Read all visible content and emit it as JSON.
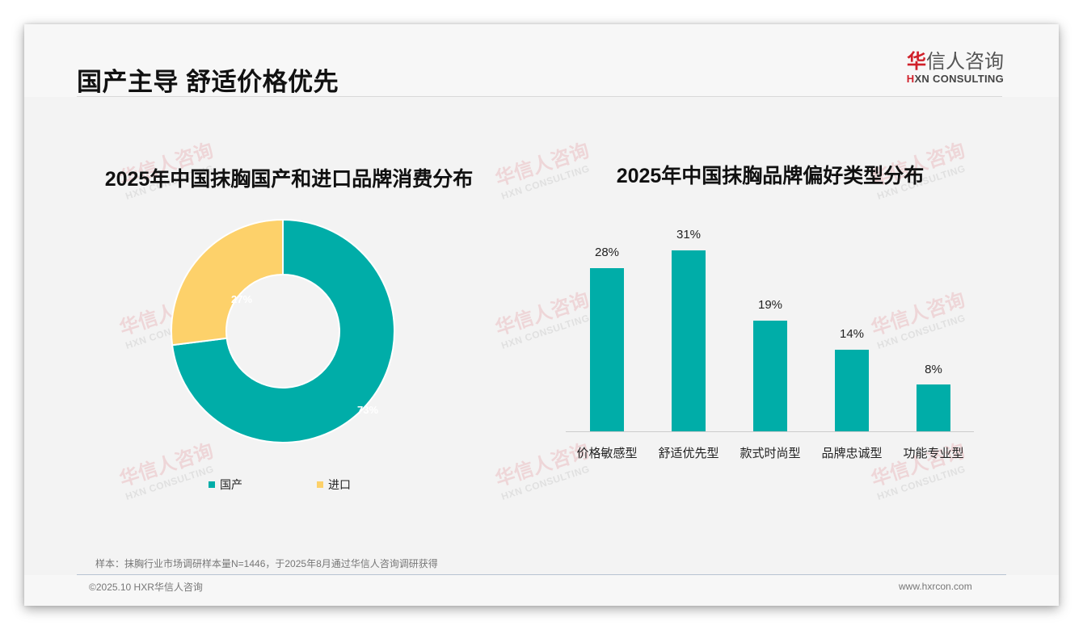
{
  "header": {
    "title": "国产主导 舒适价格优先",
    "logo": {
      "cn_first": "华",
      "cn_rest": "信人咨询",
      "en_first": "H",
      "en_rest": "XN CONSULTING"
    }
  },
  "watermark": {
    "cn": "华信人咨询",
    "en": "HXN CONSULTING"
  },
  "left_chart": {
    "title": "2025年中国抹胸国产和进口品牌消费分布",
    "labels": {
      "domestic": "73%",
      "import": "27%"
    },
    "legend": [
      {
        "label": "国产",
        "color": "#00ada8"
      },
      {
        "label": "进口",
        "color": "#fdd16a"
      }
    ]
  },
  "right_chart": {
    "title": "2025年中国抹胸品牌偏好类型分布",
    "value_labels": [
      "28%",
      "31%",
      "19%",
      "14%",
      "8%"
    ],
    "categories": [
      "价格敏感型",
      "舒适优先型",
      "款式时尚型",
      "品牌忠诚型",
      "功能专业型"
    ]
  },
  "footer": {
    "footnote": "样本：抹胸行业市场调研样本量N=1446，于2025年8月通过华信人咨询调研获得",
    "copyright": "©2025.10 HXR华信人咨询",
    "website": "www.hxrcon.com"
  },
  "colors": {
    "teal": "#00ada8",
    "yellow": "#fdd16a",
    "brand_red": "#d0202a"
  },
  "chart_data": [
    {
      "type": "pie",
      "title": "2025年中国抹胸国产和进口品牌消费分布",
      "categories": [
        "国产",
        "进口"
      ],
      "values": [
        73,
        27
      ],
      "unit": "%",
      "donut": true,
      "legend_position": "bottom"
    },
    {
      "type": "bar",
      "title": "2025年中国抹胸品牌偏好类型分布",
      "categories": [
        "价格敏感型",
        "舒适优先型",
        "款式时尚型",
        "品牌忠诚型",
        "功能专业型"
      ],
      "values": [
        28,
        31,
        19,
        14,
        8
      ],
      "unit": "%",
      "xlabel": "",
      "ylabel": "",
      "ylim": [
        0,
        35
      ],
      "grid": false,
      "data_labels": true
    }
  ]
}
